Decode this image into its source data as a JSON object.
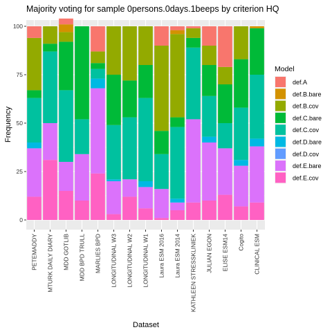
{
  "chart_data": {
    "type": "bar",
    "stacked": true,
    "title": "Majority voting for sample 0persons.0days.1beeps by criterion HQ",
    "xlabel": "Dataset",
    "ylabel": "Frequency",
    "ylim": [
      0,
      100
    ],
    "yticks": [
      0,
      25,
      50,
      75,
      100
    ],
    "grid": true,
    "legend_placement": "right",
    "legend_title": "Model",
    "categories": [
      "PETEMADDY",
      "MTURK DAILY DIARY",
      "MDD GOTLIB",
      "MDD BPD TRULL",
      "MARLIES BPD",
      "LONGITUDINAL W3",
      "LONGITUDINAL W2",
      "LONGITUDINAL W1",
      "Laura ESM 2016",
      "Laura ESM 2014",
      "KATHLEEN STRESSKLINIEK",
      "JULIAN EGON",
      "ELISE ESM14",
      "Cogito",
      "CLINICAL ESM"
    ],
    "series": [
      {
        "name": "def.E.cov",
        "color": "#FF61C3",
        "values": [
          12,
          31,
          15,
          10,
          24,
          3,
          12,
          6,
          1,
          5,
          9,
          10,
          13,
          7,
          9
        ]
      },
      {
        "name": "def.E.bare",
        "color": "#DB72FB",
        "values": [
          25,
          19,
          15,
          24,
          44,
          17,
          9,
          11,
          15,
          4,
          43,
          30,
          24,
          21,
          29
        ]
      },
      {
        "name": "def.D.cov",
        "color": "#619CFF",
        "values": [
          0,
          0,
          0,
          0,
          0,
          0,
          0,
          0,
          0,
          0,
          0,
          0,
          0,
          0,
          0
        ]
      },
      {
        "name": "def.D.bare",
        "color": "#00B9E3",
        "values": [
          3,
          0,
          0,
          0,
          5,
          1,
          0,
          3,
          0,
          2,
          0,
          3,
          0,
          3,
          4
        ]
      },
      {
        "name": "def.C.cov",
        "color": "#00C19F",
        "values": [
          23,
          37,
          37,
          18,
          5,
          28,
          32,
          43,
          18,
          37,
          37,
          21,
          13,
          27,
          33
        ]
      },
      {
        "name": "def.C.bare",
        "color": "#00BA38",
        "values": [
          4,
          4,
          25,
          48,
          3,
          26,
          19,
          17,
          12,
          5,
          5,
          16,
          20,
          25,
          24
        ]
      },
      {
        "name": "def.B.cov",
        "color": "#93AA00",
        "values": [
          27,
          9,
          5,
          0,
          6,
          25,
          28,
          20,
          44,
          43,
          5,
          10,
          9,
          17,
          0
        ]
      },
      {
        "name": "def.B.bare",
        "color": "#D39200",
        "values": [
          0,
          0,
          4,
          0,
          0,
          0,
          0,
          0,
          0,
          2,
          0,
          0,
          0,
          0,
          1
        ]
      },
      {
        "name": "def.A",
        "color": "#F8766D",
        "values": [
          6,
          0,
          3,
          0,
          13,
          0,
          0,
          0,
          10,
          2,
          1,
          10,
          21,
          0,
          0
        ]
      }
    ]
  }
}
